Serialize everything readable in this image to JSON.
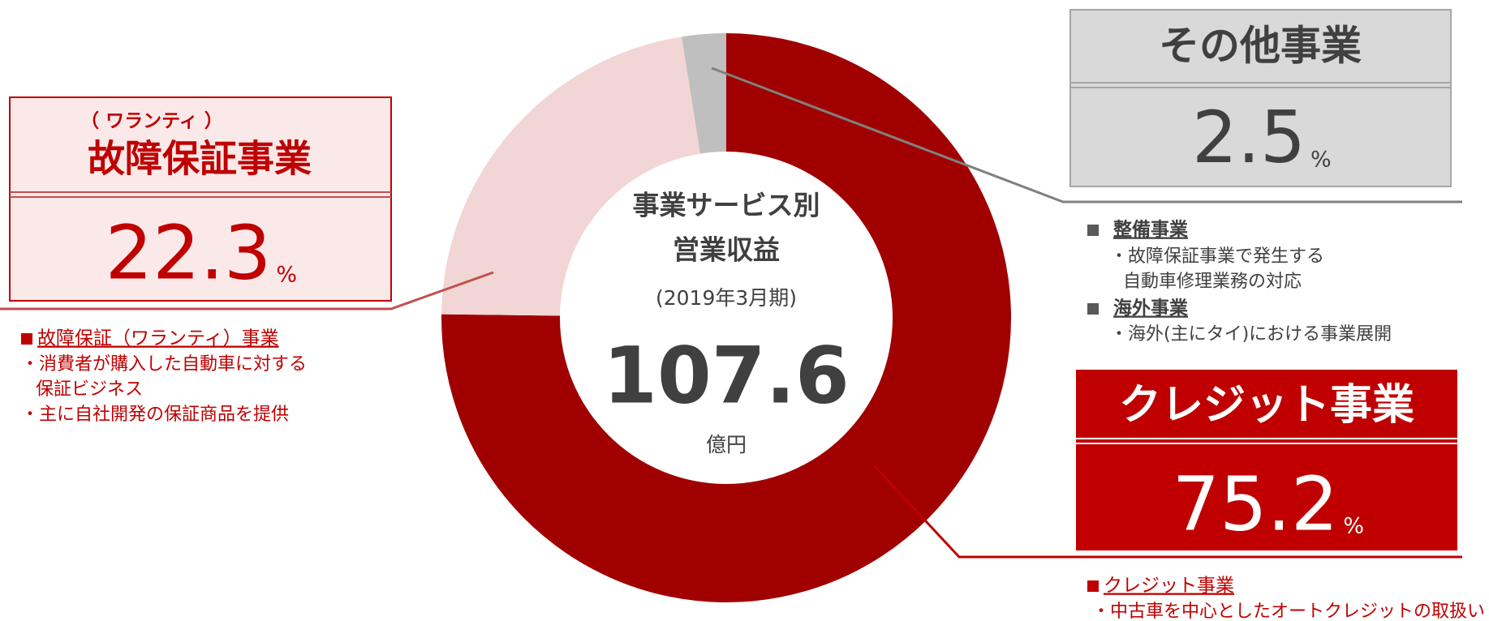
{
  "chart_data": {
    "type": "pie",
    "donut": true,
    "categories": [
      "クレジット事業",
      "故障保証事業",
      "その他事業"
    ],
    "values": [
      75.2,
      22.3,
      2.5
    ],
    "colors": [
      "#a00000",
      "#f2d5d5",
      "#bfbfbf"
    ],
    "unit": "%",
    "subtitle": "（ ワランティ ）",
    "center": {
      "lines": [
        "事業サービス別",
        "営業収益"
      ],
      "period": "(2019年3月期)",
      "total": 107.6,
      "total_unit": "億円"
    },
    "notes": [
      {
        "heading": "クレジット事業",
        "lines": [
          "・中古車を中心としたオートクレジットの取扱い"
        ]
      },
      {
        "heading": "故障保証（ワランティ）事業",
        "lines": [
          "・消費者が購入した自動車に対する",
          "保証ビジネス",
          "・主に自社開発の保証商品を提供"
        ]
      },
      {
        "heading": "整備事業",
        "lines": [
          "・故障保証事業で発生する",
          "自動車修理業務の対応"
        ]
      },
      {
        "heading": "海外事業",
        "lines": [
          "・海外(主にタイ)における事業展開"
        ]
      }
    ]
  }
}
